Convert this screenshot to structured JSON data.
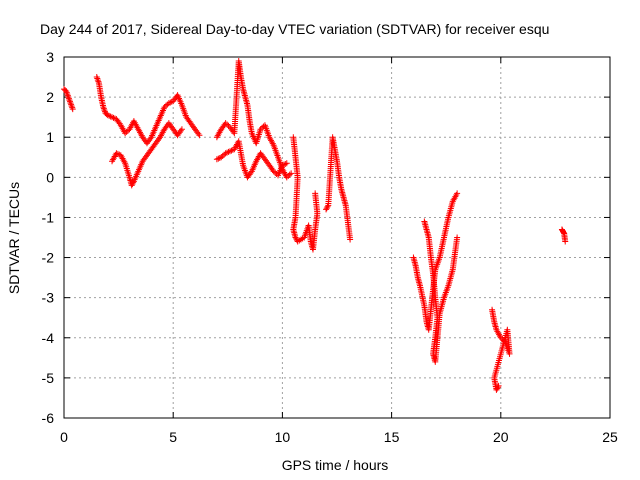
{
  "chart_data": {
    "type": "scatter",
    "title": "Day 244 of 2017, Sidereal Day-to-day VTEC variation (SDTVAR) for receiver esqu",
    "xlabel": "GPS time / hours",
    "ylabel": "SDTVAR / TECUs",
    "xlim": [
      0,
      25
    ],
    "ylim": [
      -6,
      3
    ],
    "xticks": [
      "0",
      "5",
      "10",
      "15",
      "20",
      "25"
    ],
    "yticks": [
      "3",
      "2",
      "1",
      "0",
      "-1",
      "-2",
      "-3",
      "-4",
      "-5",
      "-6"
    ],
    "grid": true,
    "marker": "+",
    "color": "#ff0000",
    "segments": [
      {
        "name": "seg-early",
        "points": [
          [
            0.0,
            2.2
          ],
          [
            0.1,
            2.15
          ],
          [
            0.2,
            2.0
          ],
          [
            0.3,
            1.85
          ],
          [
            0.4,
            1.7
          ]
        ]
      },
      {
        "name": "seg-a",
        "points": [
          [
            1.5,
            2.5
          ],
          [
            1.6,
            2.35
          ],
          [
            1.7,
            2.0
          ],
          [
            1.8,
            1.75
          ],
          [
            1.9,
            1.6
          ],
          [
            2.0,
            1.55
          ],
          [
            2.2,
            1.5
          ],
          [
            2.4,
            1.45
          ],
          [
            2.6,
            1.3
          ],
          [
            2.8,
            1.1
          ],
          [
            3.0,
            1.2
          ],
          [
            3.2,
            1.4
          ],
          [
            3.4,
            1.2
          ],
          [
            3.6,
            1.0
          ],
          [
            3.8,
            0.85
          ],
          [
            4.0,
            1.0
          ],
          [
            4.2,
            1.25
          ],
          [
            4.4,
            1.5
          ],
          [
            4.6,
            1.75
          ],
          [
            4.8,
            1.85
          ],
          [
            5.0,
            1.9
          ],
          [
            5.2,
            2.05
          ],
          [
            5.4,
            1.8
          ],
          [
            5.6,
            1.5
          ],
          [
            5.8,
            1.35
          ],
          [
            6.0,
            1.2
          ],
          [
            6.2,
            1.05
          ]
        ]
      },
      {
        "name": "seg-b",
        "points": [
          [
            2.2,
            0.4
          ],
          [
            2.4,
            0.6
          ],
          [
            2.6,
            0.55
          ],
          [
            2.8,
            0.35
          ],
          [
            3.0,
            0.0
          ],
          [
            3.1,
            -0.2
          ],
          [
            3.2,
            -0.1
          ],
          [
            3.4,
            0.15
          ],
          [
            3.6,
            0.4
          ],
          [
            3.8,
            0.55
          ],
          [
            4.0,
            0.7
          ],
          [
            4.2,
            0.85
          ],
          [
            4.4,
            1.0
          ],
          [
            4.6,
            1.2
          ],
          [
            4.8,
            1.35
          ],
          [
            5.0,
            1.2
          ],
          [
            5.2,
            1.05
          ],
          [
            5.4,
            1.2
          ]
        ]
      },
      {
        "name": "seg-c",
        "points": [
          [
            7.0,
            0.45
          ],
          [
            7.2,
            0.5
          ],
          [
            7.4,
            0.6
          ],
          [
            7.6,
            0.65
          ],
          [
            7.8,
            0.7
          ],
          [
            8.0,
            0.9
          ],
          [
            8.2,
            0.3
          ],
          [
            8.4,
            0.0
          ],
          [
            8.6,
            0.15
          ],
          [
            8.8,
            0.4
          ],
          [
            9.0,
            0.6
          ],
          [
            9.2,
            0.45
          ],
          [
            9.4,
            0.3
          ],
          [
            9.6,
            0.15
          ],
          [
            9.8,
            0.05
          ],
          [
            10.0,
            0.3
          ],
          [
            10.2,
            0.35
          ]
        ]
      },
      {
        "name": "seg-d",
        "points": [
          [
            7.0,
            1.0
          ],
          [
            7.2,
            1.2
          ],
          [
            7.4,
            1.35
          ],
          [
            7.6,
            1.25
          ],
          [
            7.8,
            1.1
          ],
          [
            8.0,
            2.9
          ],
          [
            8.1,
            2.5
          ],
          [
            8.2,
            2.2
          ],
          [
            8.3,
            2.0
          ],
          [
            8.4,
            1.8
          ],
          [
            8.5,
            1.4
          ],
          [
            8.6,
            1.1
          ],
          [
            8.8,
            0.85
          ],
          [
            9.0,
            1.2
          ],
          [
            9.2,
            1.3
          ],
          [
            9.4,
            1.0
          ],
          [
            9.6,
            0.8
          ],
          [
            9.8,
            0.5
          ],
          [
            10.0,
            0.2
          ],
          [
            10.2,
            0.0
          ],
          [
            10.4,
            0.1
          ]
        ]
      },
      {
        "name": "seg-e",
        "points": [
          [
            10.5,
            1.0
          ],
          [
            10.6,
            0.5
          ],
          [
            10.7,
            0.0
          ],
          [
            10.6,
            -1.0
          ],
          [
            10.5,
            -1.3
          ],
          [
            10.6,
            -1.5
          ],
          [
            10.7,
            -1.6
          ],
          [
            11.0,
            -1.5
          ],
          [
            11.2,
            -1.2
          ],
          [
            11.3,
            -1.6
          ],
          [
            11.4,
            -1.8
          ],
          [
            11.5,
            -1.3
          ],
          [
            11.6,
            -0.9
          ],
          [
            11.5,
            -0.4
          ]
        ]
      },
      {
        "name": "seg-f",
        "points": [
          [
            12.0,
            -0.8
          ],
          [
            12.1,
            -0.7
          ],
          [
            12.3,
            1.0
          ],
          [
            12.4,
            0.7
          ],
          [
            12.5,
            0.4
          ],
          [
            12.6,
            0.0
          ],
          [
            12.7,
            -0.3
          ],
          [
            12.8,
            -0.5
          ],
          [
            12.9,
            -0.7
          ],
          [
            13.1,
            -1.55
          ]
        ]
      },
      {
        "name": "seg-g",
        "points": [
          [
            16.0,
            -2.0
          ],
          [
            16.1,
            -2.2
          ],
          [
            16.2,
            -2.5
          ],
          [
            16.3,
            -2.7
          ],
          [
            16.5,
            -3.2
          ],
          [
            16.6,
            -3.6
          ],
          [
            16.7,
            -3.8
          ],
          [
            16.8,
            -3.3
          ],
          [
            16.9,
            -2.8
          ],
          [
            17.0,
            -2.3
          ],
          [
            17.2,
            -2.0
          ],
          [
            17.4,
            -1.5
          ],
          [
            17.6,
            -1.0
          ],
          [
            17.8,
            -0.6
          ],
          [
            18.0,
            -0.4
          ]
        ]
      },
      {
        "name": "seg-h",
        "points": [
          [
            16.5,
            -1.1
          ],
          [
            16.6,
            -1.3
          ],
          [
            16.7,
            -1.5
          ],
          [
            16.8,
            -2.0
          ],
          [
            16.9,
            -2.4
          ],
          [
            17.0,
            -3.0
          ],
          [
            17.1,
            -3.5
          ],
          [
            17.0,
            -4.0
          ],
          [
            16.9,
            -4.4
          ],
          [
            17.0,
            -4.6
          ],
          [
            17.2,
            -3.4
          ],
          [
            17.4,
            -3.0
          ],
          [
            17.6,
            -2.7
          ],
          [
            17.8,
            -2.3
          ],
          [
            18.0,
            -1.5
          ]
        ]
      },
      {
        "name": "seg-i",
        "points": [
          [
            19.6,
            -3.3
          ],
          [
            19.7,
            -3.6
          ],
          [
            19.8,
            -3.8
          ],
          [
            20.0,
            -4.0
          ],
          [
            20.2,
            -4.1
          ],
          [
            20.4,
            -4.4
          ],
          [
            20.3,
            -3.8
          ],
          [
            19.7,
            -5.0
          ],
          [
            19.8,
            -5.3
          ],
          [
            19.9,
            -5.2
          ]
        ]
      },
      {
        "name": "seg-j",
        "points": [
          [
            22.8,
            -1.3
          ],
          [
            22.85,
            -1.35
          ],
          [
            22.9,
            -1.4
          ],
          [
            22.95,
            -1.6
          ]
        ]
      }
    ]
  }
}
